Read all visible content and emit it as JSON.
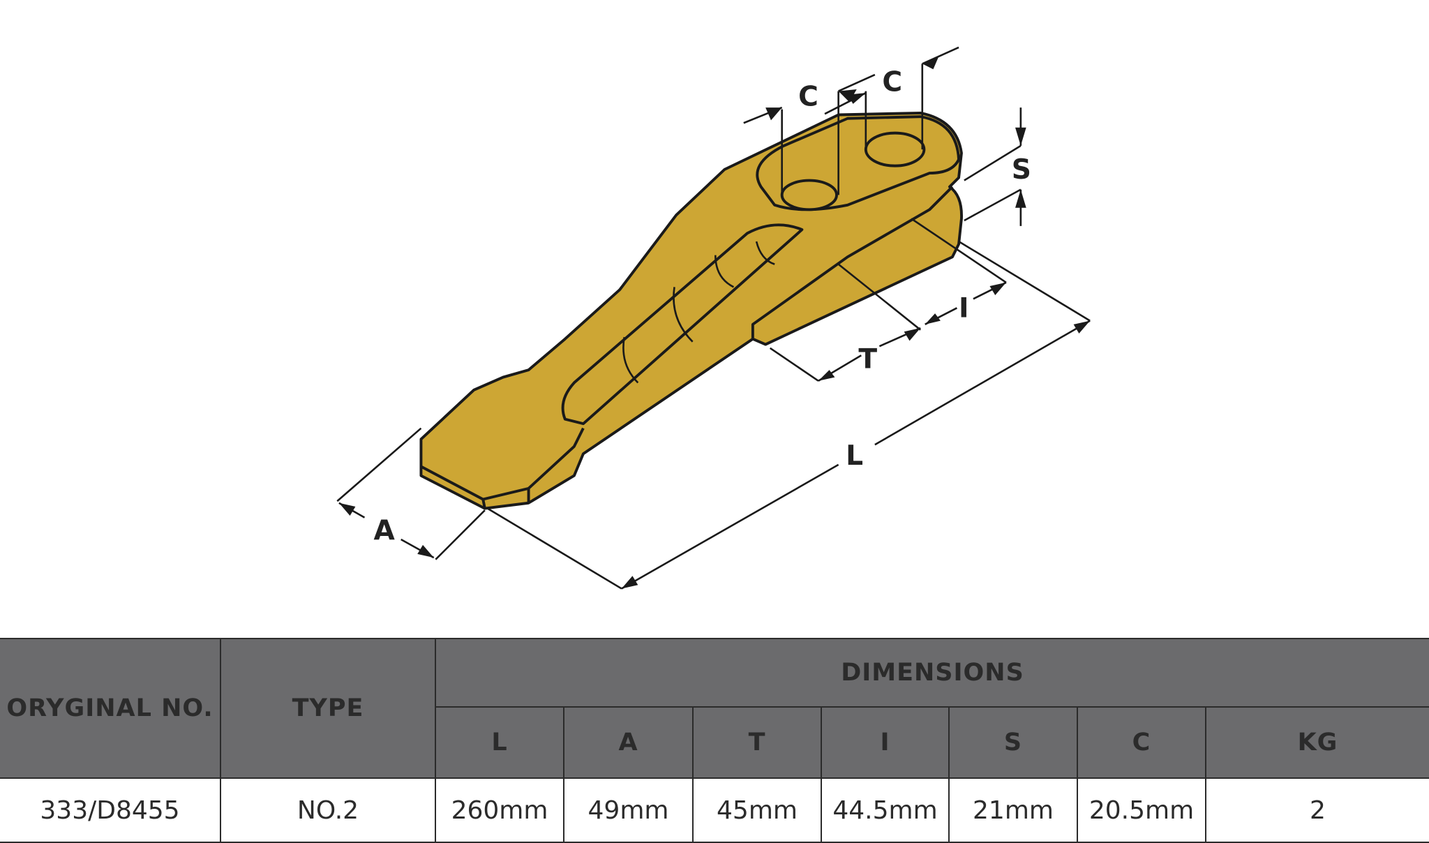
{
  "diagram": {
    "fill_color": "#CDA634",
    "labels": {
      "c1": "C",
      "c2": "C",
      "s": "S",
      "i": "I",
      "t": "T",
      "l": "L",
      "a": "A"
    }
  },
  "table": {
    "header_color": "#6B6B6D",
    "col_original": "ORYGINAL NO.",
    "col_type": "TYPE",
    "group_dimensions": "DIMENSIONS",
    "dimension_columns": [
      "L",
      "A",
      "T",
      "I",
      "S",
      "C"
    ],
    "col_kg": "KG",
    "rows": [
      {
        "original": "333/D8455",
        "type": "NO.2",
        "L": "260mm",
        "A": "49mm",
        "T": "45mm",
        "I": "44.5mm",
        "S": "21mm",
        "C": "20.5mm",
        "kg": "2"
      }
    ]
  }
}
